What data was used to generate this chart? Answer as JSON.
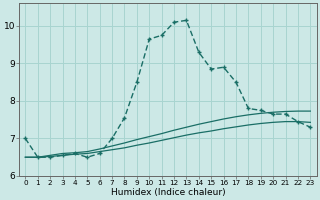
{
  "xlabel": "Humidex (Indice chaleur)",
  "background_color": "#cce8e6",
  "grid_color": "#a8d4d0",
  "line_color": "#1a6e66",
  "xlim": [
    -0.5,
    23.5
  ],
  "ylim": [
    6.0,
    10.6
  ],
  "yticks": [
    6,
    7,
    8,
    9,
    10
  ],
  "xticks": [
    0,
    1,
    2,
    3,
    4,
    5,
    6,
    7,
    8,
    9,
    10,
    11,
    12,
    13,
    14,
    15,
    16,
    17,
    18,
    19,
    20,
    21,
    22,
    23
  ],
  "line1_x": [
    0,
    1,
    2,
    3,
    4,
    5,
    6,
    7,
    8,
    9,
    10,
    11,
    12,
    13,
    14,
    15,
    16,
    17,
    18,
    19,
    20,
    21,
    22,
    23
  ],
  "line1_y": [
    7.0,
    6.5,
    6.5,
    6.55,
    6.6,
    6.5,
    6.6,
    7.0,
    7.55,
    8.5,
    9.65,
    9.75,
    10.1,
    10.15,
    9.3,
    8.85,
    8.9,
    8.5,
    7.8,
    7.75,
    7.65,
    7.65,
    7.45,
    7.3
  ],
  "line2_x": [
    0,
    1,
    2,
    3,
    4,
    5,
    6,
    7,
    8,
    9,
    10,
    11,
    12,
    13,
    14,
    15,
    16,
    17,
    18,
    19,
    20,
    21,
    22,
    23
  ],
  "line2_y": [
    6.5,
    6.5,
    6.55,
    6.6,
    6.62,
    6.65,
    6.72,
    6.8,
    6.88,
    6.97,
    7.05,
    7.13,
    7.22,
    7.3,
    7.38,
    7.45,
    7.52,
    7.58,
    7.63,
    7.67,
    7.7,
    7.72,
    7.73,
    7.73
  ],
  "line3_x": [
    0,
    1,
    2,
    3,
    4,
    5,
    6,
    7,
    8,
    9,
    10,
    11,
    12,
    13,
    14,
    15,
    16,
    17,
    18,
    19,
    20,
    21,
    22,
    23
  ],
  "line3_y": [
    6.5,
    6.5,
    6.52,
    6.55,
    6.58,
    6.6,
    6.65,
    6.7,
    6.75,
    6.82,
    6.88,
    6.95,
    7.02,
    7.09,
    7.15,
    7.2,
    7.26,
    7.31,
    7.36,
    7.4,
    7.43,
    7.45,
    7.45,
    7.43
  ]
}
